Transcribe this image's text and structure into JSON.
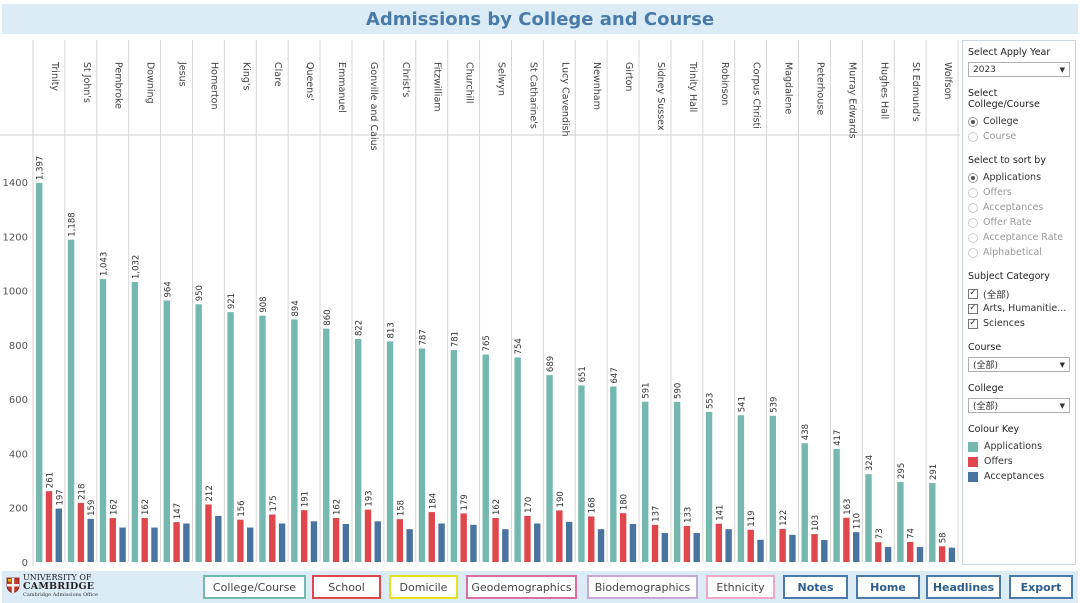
{
  "title": "Admissions by College and Course",
  "colors": {
    "applications": "#74b8b0",
    "offers": "#e0474c",
    "acceptances": "#4a74a0"
  },
  "chart_data": {
    "type": "bar",
    "title": "",
    "xlabel": "",
    "ylabel": "",
    "ylim": [
      0,
      1500
    ],
    "yticks": [
      0,
      200,
      400,
      600,
      800,
      1000,
      1200,
      1400
    ],
    "grid": false,
    "categories": [
      "Trinity",
      "St John's",
      "Pembroke",
      "Downing",
      "Jesus",
      "Homerton",
      "King's",
      "Clare",
      "Queens'",
      "Emmanuel",
      "Gonville and Caius",
      "Christ's",
      "Fitzwilliam",
      "Churchill",
      "Selwyn",
      "St Catharine's",
      "Lucy Cavendish",
      "Newnham",
      "Girton",
      "Sidney Sussex",
      "Trinity Hall",
      "Robinson",
      "Corpus Christi",
      "Magdalene",
      "Peterhouse",
      "Murray Edwards",
      "Hughes Hall",
      "St Edmund's",
      "Wolfson"
    ],
    "series": [
      {
        "name": "Applications",
        "values": [
          1397,
          1188,
          1043,
          1032,
          964,
          950,
          921,
          908,
          894,
          860,
          822,
          813,
          787,
          781,
          765,
          754,
          689,
          651,
          647,
          591,
          590,
          553,
          541,
          539,
          438,
          417,
          324,
          295,
          291
        ]
      },
      {
        "name": "Offers",
        "values": [
          261,
          218,
          162,
          162,
          147,
          212,
          156,
          175,
          191,
          162,
          193,
          158,
          184,
          179,
          162,
          170,
          190,
          168,
          180,
          137,
          133,
          141,
          119,
          122,
          103,
          163,
          73,
          74,
          58
        ]
      },
      {
        "name": "Acceptances",
        "values": [
          197,
          159,
          127,
          127,
          142,
          170,
          127,
          142,
          150,
          140,
          150,
          121,
          142,
          137,
          121,
          142,
          148,
          121,
          140,
          107,
          107,
          121,
          82,
          100,
          81,
          110,
          55,
          55,
          53
        ]
      }
    ],
    "labeled": [
      [
        "1,397",
        "261",
        "197"
      ],
      [
        "1,188",
        "218",
        "159"
      ],
      [
        "1,043",
        "162",
        null
      ],
      [
        "1,032",
        "162",
        null
      ],
      [
        "964",
        "147",
        null
      ],
      [
        "950",
        "212",
        null
      ],
      [
        "921",
        "156",
        null
      ],
      [
        "908",
        "175",
        null
      ],
      [
        "894",
        "191",
        null
      ],
      [
        "860",
        "162",
        null
      ],
      [
        "822",
        "193",
        null
      ],
      [
        "813",
        "158",
        null
      ],
      [
        "787",
        "184",
        null
      ],
      [
        "781",
        "179",
        null
      ],
      [
        "765",
        "162",
        null
      ],
      [
        "754",
        "170",
        null
      ],
      [
        "689",
        "190",
        null
      ],
      [
        "651",
        "168",
        null
      ],
      [
        "647",
        "180",
        null
      ],
      [
        "591",
        "137",
        null
      ],
      [
        "590",
        "133",
        null
      ],
      [
        "553",
        "141",
        null
      ],
      [
        "541",
        "119",
        null
      ],
      [
        "539",
        "122",
        null
      ],
      [
        "438",
        "103",
        null
      ],
      [
        "417",
        "163",
        "110"
      ],
      [
        "324",
        "73",
        null
      ],
      [
        "295",
        "74",
        null
      ],
      [
        "291",
        "58",
        null
      ]
    ]
  },
  "sidebar": {
    "apply_year": {
      "heading": "Select Apply Year",
      "value": "2023"
    },
    "college_course": {
      "heading": "Select College/Course",
      "options": [
        {
          "label": "College",
          "selected": true
        },
        {
          "label": "Course",
          "selected": false
        }
      ]
    },
    "sort_by": {
      "heading": "Select to sort by",
      "options": [
        {
          "label": "Applications",
          "selected": true
        },
        {
          "label": "Offers",
          "selected": false
        },
        {
          "label": "Acceptances",
          "selected": false
        },
        {
          "label": "Offer Rate",
          "selected": false
        },
        {
          "label": "Acceptance Rate",
          "selected": false
        },
        {
          "label": "Alphabetical",
          "selected": false
        }
      ]
    },
    "subject_category": {
      "heading": "Subject Category",
      "options": [
        {
          "label": "(全部)",
          "checked": true
        },
        {
          "label": "Arts, Humanitie...",
          "checked": true
        },
        {
          "label": "Sciences",
          "checked": true
        }
      ]
    },
    "course": {
      "heading": "Course",
      "value": "(全部)"
    },
    "college": {
      "heading": "College",
      "value": "(全部)"
    },
    "colour_key": {
      "heading": "Colour Key",
      "items": [
        {
          "label": "Applications",
          "color": "#74b8b0"
        },
        {
          "label": "Offers",
          "color": "#e0474c"
        },
        {
          "label": "Acceptances",
          "color": "#4a74a0"
        }
      ]
    }
  },
  "footer": {
    "logo": {
      "line1": "UNIVERSITY OF",
      "line2": "CAMBRIDGE",
      "line3": "Cambridge Admissions Office"
    },
    "buttons": [
      {
        "label": "College/Course",
        "border": "#74b8b0"
      },
      {
        "label": "School",
        "border": "#e0474c"
      },
      {
        "label": "Domicile",
        "border": "#e6e020"
      },
      {
        "label": "Geodemographics",
        "border": "#d96fa0"
      },
      {
        "label": "Biodemographics",
        "border": "#c9a6d8"
      },
      {
        "label": "Ethnicity",
        "border": "#f0a8c4"
      },
      {
        "label": "Notes",
        "border": "#4a7aa8"
      },
      {
        "label": "Home",
        "border": "#4a7aa8"
      },
      {
        "label": "Headlines",
        "border": "#4a7aa8"
      },
      {
        "label": "Export",
        "border": "#4a7aa8"
      }
    ]
  }
}
